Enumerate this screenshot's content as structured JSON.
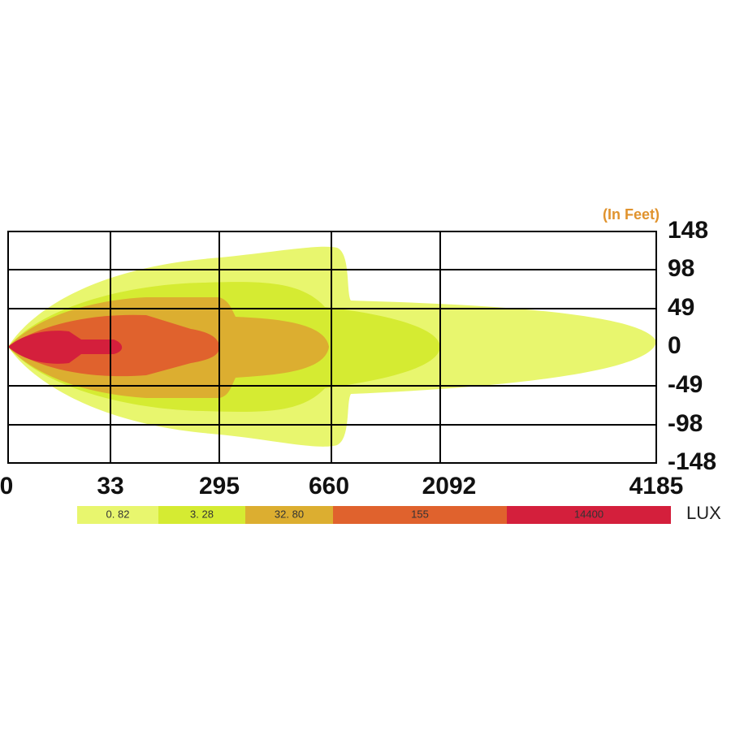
{
  "unit_note": "(In Feet)",
  "y_labels": [
    "148",
    "98",
    "49",
    "0",
    "-49",
    "-98",
    "-148"
  ],
  "x_labels": [
    "0",
    "33",
    "295",
    "660",
    "2092",
    "4185"
  ],
  "legend": {
    "items": [
      {
        "label": "0. 82",
        "color": "#e8f66e"
      },
      {
        "label": "3. 28",
        "color": "#d5eb32"
      },
      {
        "label": "32. 80",
        "color": "#dcae30"
      },
      {
        "label": "155",
        "color": "#e0622d"
      },
      {
        "label": "14400",
        "color": "#d41f3c"
      }
    ],
    "unit": "LUX"
  }
}
